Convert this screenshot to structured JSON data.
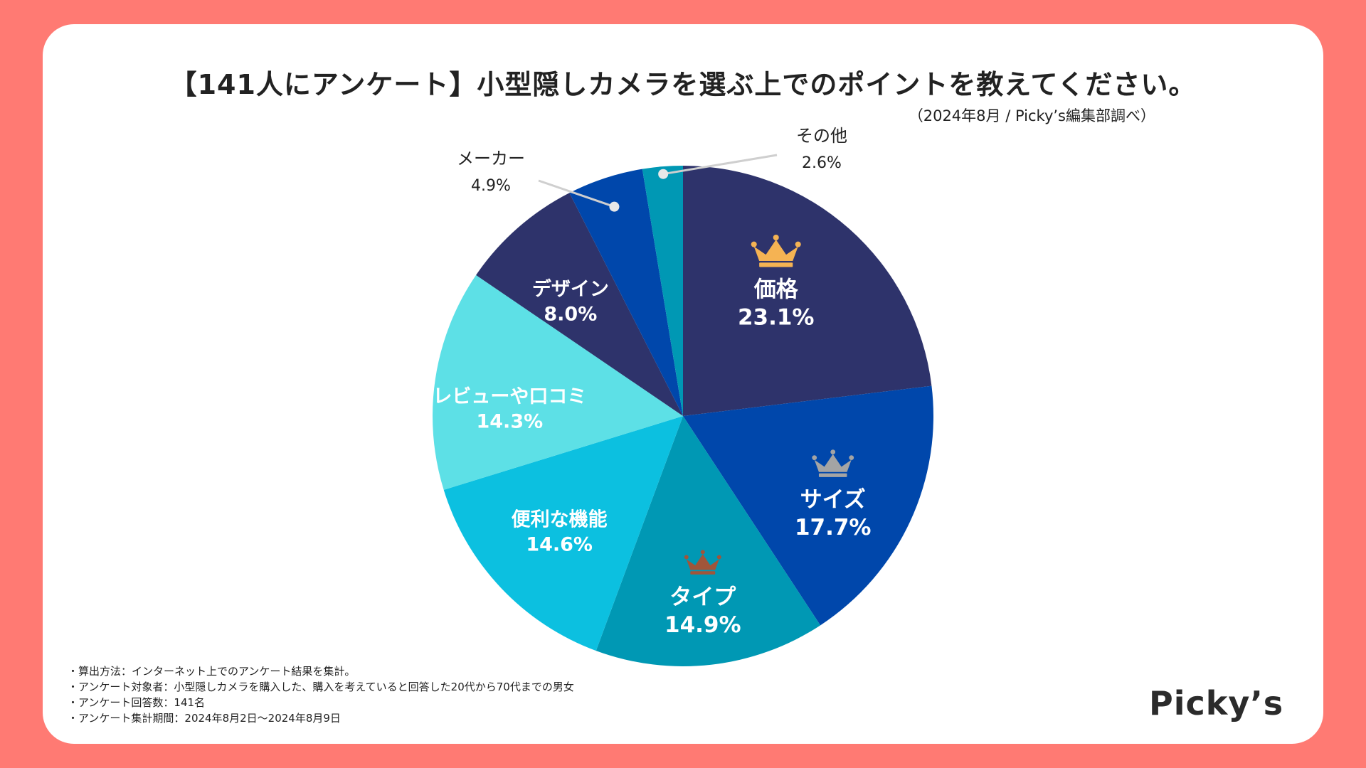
{
  "title": "【141人にアンケート】小型隠しカメラを選ぶ上でのポイントを教えてください。",
  "source": "（2024年8月 / Picky’s編集部調べ）",
  "notes": [
    "・算出方法：インターネット上でのアンケート結果を集計。",
    "・アンケート対象者：小型隠しカメラを購入した、購入を考えていると回答した20代から70代までの男女",
    "・アンケート回答数：141名",
    "・アンケート集計期間：2024年8月2日〜2024年8月9日"
  ],
  "logo": "Picky’s",
  "colors": {
    "background": "#FF7A73",
    "inside_label": "#ffffff",
    "outside_label": "#222222",
    "leader": "#cfcfcf",
    "crown_gold": "#F5B353",
    "crown_silver": "#A4A4A4",
    "crown_bronze": "#A0553A"
  },
  "chart_data": {
    "type": "pie",
    "title": "【141人にアンケート】小型隠しカメラを選ぶ上でのポイントを教えてください。",
    "unit": "%",
    "start": "12 o'clock, clockwise",
    "slices": [
      {
        "label": "価格",
        "value": 23.1,
        "value_label": "23.1%",
        "color": "#2E336B",
        "rank": 1
      },
      {
        "label": "サイズ",
        "value": 17.7,
        "value_label": "17.7%",
        "color": "#0047AB",
        "rank": 2
      },
      {
        "label": "タイプ",
        "value": 14.9,
        "value_label": "14.9%",
        "color": "#0098B4",
        "rank": 3
      },
      {
        "label": "便利な機能",
        "value": 14.6,
        "value_label": "14.6%",
        "color": "#0CC0E0"
      },
      {
        "label": "レビューや口コミ",
        "value": 14.3,
        "value_label": "14.3%",
        "color": "#5DE0E6"
      },
      {
        "label": "デザイン",
        "value": 8.0,
        "value_label": "8.0%",
        "color": "#2E336B"
      },
      {
        "label": "メーカー",
        "value": 4.9,
        "value_label": "4.9%",
        "color": "#0047AB"
      },
      {
        "label": "その他",
        "value": 2.6,
        "value_label": "2.6%",
        "color": "#0098B4"
      }
    ]
  }
}
